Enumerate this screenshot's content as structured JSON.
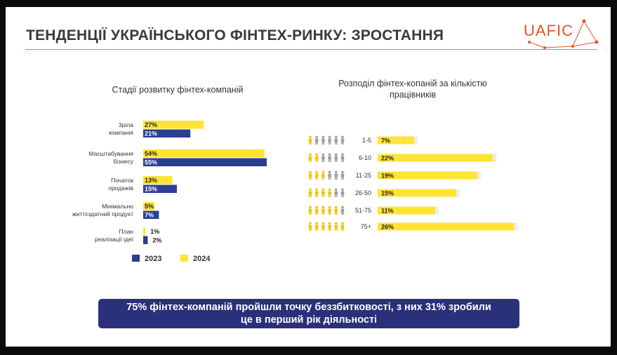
{
  "title": "ТЕНДЕНЦІЇ УКРАЇНСЬКОГО ФІНТЕХ-РИНКУ: ЗРОСТАННЯ",
  "logo": {
    "text": "UAFIC"
  },
  "colors": {
    "y2023": "#2b3f8f",
    "y2024": "#ffe433",
    "accent": "#e77d3c",
    "banner": "#2a307a",
    "person_on": "#f5c400",
    "person_off": "#9e9e9e"
  },
  "chart_data": [
    {
      "type": "bar",
      "orientation": "horizontal",
      "title": "Стадії розвитку фінтех-компаній",
      "categories": [
        [
          "Зріла",
          "компанія"
        ],
        [
          "Масштабування",
          "бізнесу"
        ],
        [
          "Початок",
          "продажів"
        ],
        [
          "Мінімально",
          "життєздатний продукт"
        ],
        [
          "План",
          "реалізації ідеї"
        ]
      ],
      "series": [
        {
          "name": "2024",
          "values": [
            27,
            54,
            13,
            5,
            1
          ],
          "labels": [
            "27%",
            "54%",
            "13%",
            "5%",
            "1%"
          ]
        },
        {
          "name": "2023",
          "values": [
            21,
            55,
            15,
            7,
            2
          ],
          "labels": [
            "21%",
            "55%",
            "15%",
            "7%",
            "2%"
          ]
        }
      ],
      "legend": [
        "2023",
        "2024"
      ],
      "legend_position": "bottom"
    },
    {
      "type": "bar",
      "orientation": "horizontal",
      "title": "Розподіл фінтех-копаній за кількістю працівників",
      "categories": [
        "1-5",
        "6-10",
        "11-25",
        "26-50",
        "51-75",
        "75+"
      ],
      "values": [
        7,
        22,
        19,
        15,
        11,
        26
      ],
      "labels": [
        "7%",
        "22%",
        "19%",
        "15%",
        "11%",
        "26%"
      ],
      "icons_filled": [
        1,
        2,
        3,
        4,
        5,
        6
      ],
      "icon": "person-icon"
    }
  ],
  "banner": {
    "line1": "75% фінтех-компаній пройшли точку беззбитковості, з них 31% зробили",
    "line2": "це в перший рік діяльності"
  }
}
